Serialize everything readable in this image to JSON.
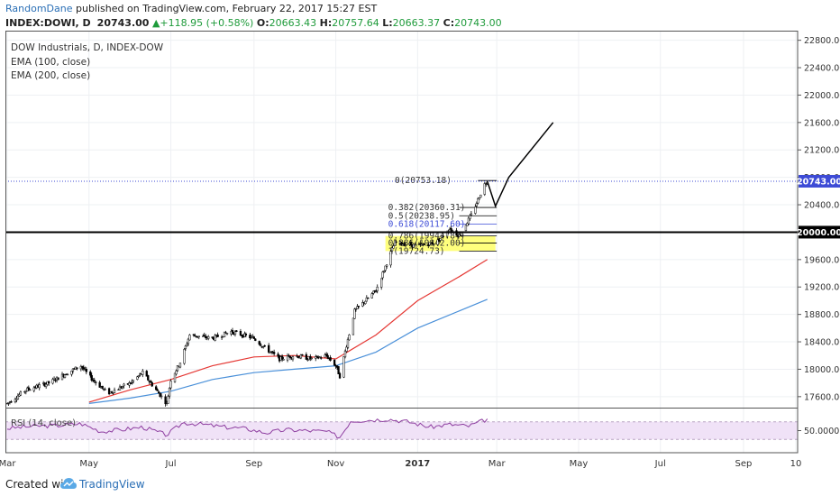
{
  "header": {
    "author": "RandomDane",
    "published": "published on TradingView.com, February 22, 2017 15:27 EST",
    "symbol": "INDEX:DOWI, D",
    "last": "20743.00",
    "change": "+118.95 (+0.58%)",
    "open_label": "O:",
    "open": "20663.43",
    "high_label": "H:",
    "high": "20757.64",
    "low_label": "L:",
    "low": "20663.37",
    "close_label": "C:",
    "close": "20743.00"
  },
  "legend": {
    "title": "DOW Industrials, D, INDEX-DOW",
    "ema100": "EMA (100, close)",
    "ema200": "EMA (200, close)"
  },
  "footer": {
    "created_with": "Created with",
    "brand": "TradingView"
  },
  "colors": {
    "candle": "#000000",
    "ema100": "#e53935",
    "ema200": "#4a90d9",
    "rsi": "#8e3ea0",
    "rsi_band": "#f0e2f7",
    "fib_box": "#ffff66",
    "last_price_line": "#3d4bd6",
    "price_label_bg": "#3d4bd6",
    "author": "#2a6fb6",
    "up": "#1f9b3b"
  },
  "chart_data": {
    "type": "candlestick",
    "title": "DOW Industrials, D, INDEX-DOW",
    "x_tick_labels": [
      "Mar",
      "May",
      "Jul",
      "Sep",
      "Nov",
      "2017",
      "Mar",
      "May",
      "Jul",
      "Sep",
      "10"
    ],
    "y_tick_labels": [
      "17600.00",
      "18000.00",
      "18400.00",
      "18800.00",
      "19200.00",
      "19600.00",
      "20000.00",
      "20400.00",
      "20800.00",
      "21200.00",
      "21600.00",
      "22000.00",
      "22400.00",
      "22800.00"
    ],
    "ylim": [
      17440,
      22940
    ],
    "last_price_label": "20743.00",
    "horizontal_level_label": "20000.00",
    "last_price": 20743,
    "horizontal_level": 20000,
    "price_path": [
      [
        "2016-03-01",
        17500
      ],
      [
        "2016-03-15",
        17700
      ],
      [
        "2016-04-01",
        17800
      ],
      [
        "2016-04-15",
        17950
      ],
      [
        "2016-04-25",
        18050
      ],
      [
        "2016-05-01",
        17900
      ],
      [
        "2016-05-15",
        17650
      ],
      [
        "2016-06-01",
        17800
      ],
      [
        "2016-06-10",
        17950
      ],
      [
        "2016-06-20",
        17700
      ],
      [
        "2016-06-28",
        17500
      ],
      [
        "2016-07-01",
        17850
      ],
      [
        "2016-07-08",
        18100
      ],
      [
        "2016-07-15",
        18500
      ],
      [
        "2016-08-01",
        18450
      ],
      [
        "2016-08-15",
        18550
      ],
      [
        "2016-09-01",
        18450
      ],
      [
        "2016-09-10",
        18300
      ],
      [
        "2016-09-20",
        18150
      ],
      [
        "2016-10-01",
        18200
      ],
      [
        "2016-10-15",
        18150
      ],
      [
        "2016-10-25",
        18200
      ],
      [
        "2016-11-01",
        18050
      ],
      [
        "2016-11-04",
        17900
      ],
      [
        "2016-11-09",
        18350
      ],
      [
        "2016-11-15",
        18850
      ],
      [
        "2016-12-01",
        19150
      ],
      [
        "2016-12-15",
        19850
      ],
      [
        "2017-01-01",
        19800
      ],
      [
        "2017-01-15",
        19850
      ],
      [
        "2017-01-25",
        20050
      ],
      [
        "2017-02-01",
        19950
      ],
      [
        "2017-02-10",
        20250
      ],
      [
        "2017-02-20",
        20700
      ],
      [
        "2017-02-22",
        20743
      ]
    ],
    "ema100": [
      [
        "2016-05-01",
        17520
      ],
      [
        "2016-06-01",
        17700
      ],
      [
        "2016-07-01",
        17850
      ],
      [
        "2016-08-01",
        18050
      ],
      [
        "2016-09-01",
        18180
      ],
      [
        "2016-10-01",
        18200
      ],
      [
        "2016-11-01",
        18150
      ],
      [
        "2016-12-01",
        18500
      ],
      [
        "2017-01-01",
        19000
      ],
      [
        "2017-02-01",
        19350
      ],
      [
        "2017-02-22",
        19600
      ]
    ],
    "ema200": [
      [
        "2016-05-01",
        17500
      ],
      [
        "2016-06-01",
        17580
      ],
      [
        "2016-07-01",
        17680
      ],
      [
        "2016-08-01",
        17850
      ],
      [
        "2016-09-01",
        17950
      ],
      [
        "2016-10-01",
        18000
      ],
      [
        "2016-11-01",
        18050
      ],
      [
        "2016-12-01",
        18250
      ],
      [
        "2017-01-01",
        18600
      ],
      [
        "2017-02-01",
        18850
      ],
      [
        "2017-02-22",
        19020
      ]
    ],
    "fib_levels": [
      {
        "label": "0(20753.18)",
        "ratio": 0,
        "price": 20753.18
      },
      {
        "label": "0.382(20360.31)",
        "ratio": 0.382,
        "price": 20360.31
      },
      {
        "label": "0.5(20238.95)",
        "ratio": 0.5,
        "price": 20238.95
      },
      {
        "label": "0.618(20117.60)",
        "ratio": 0.618,
        "price": 20117.6
      },
      {
        "label": "0.786(19944.84)",
        "ratio": 0.786,
        "price": 19944.84
      },
      {
        "label": "0.886(19842.00)",
        "ratio": 0.886,
        "price": 19842.0
      },
      {
        "label": "1(19724.73)",
        "ratio": 1,
        "price": 19724.73
      }
    ],
    "projection_path": [
      [
        "2017-02-22",
        20743
      ],
      [
        "2017-02-28",
        20380
      ],
      [
        "2017-03-10",
        20800
      ],
      [
        "2017-04-12",
        21600
      ]
    ],
    "rsi": {
      "label": "RSI (14, close)",
      "tick_labels": [
        "50.0000"
      ],
      "band": [
        30,
        70
      ],
      "values": [
        [
          "2016-03-01",
          55
        ],
        [
          "2016-03-20",
          60
        ],
        [
          "2016-04-10",
          62
        ],
        [
          "2016-04-25",
          66
        ],
        [
          "2016-05-10",
          48
        ],
        [
          "2016-05-25",
          52
        ],
        [
          "2016-06-10",
          58
        ],
        [
          "2016-06-28",
          40
        ],
        [
          "2016-07-10",
          68
        ],
        [
          "2016-07-25",
          64
        ],
        [
          "2016-08-10",
          58
        ],
        [
          "2016-08-25",
          55
        ],
        [
          "2016-09-10",
          45
        ],
        [
          "2016-09-25",
          52
        ],
        [
          "2016-10-10",
          50
        ],
        [
          "2016-10-25",
          48
        ],
        [
          "2016-11-04",
          35
        ],
        [
          "2016-11-12",
          72
        ],
        [
          "2016-11-25",
          74
        ],
        [
          "2016-12-10",
          76
        ],
        [
          "2016-12-25",
          70
        ],
        [
          "2017-01-10",
          58
        ],
        [
          "2017-01-25",
          64
        ],
        [
          "2017-02-08",
          60
        ],
        [
          "2017-02-22",
          76
        ]
      ]
    }
  }
}
